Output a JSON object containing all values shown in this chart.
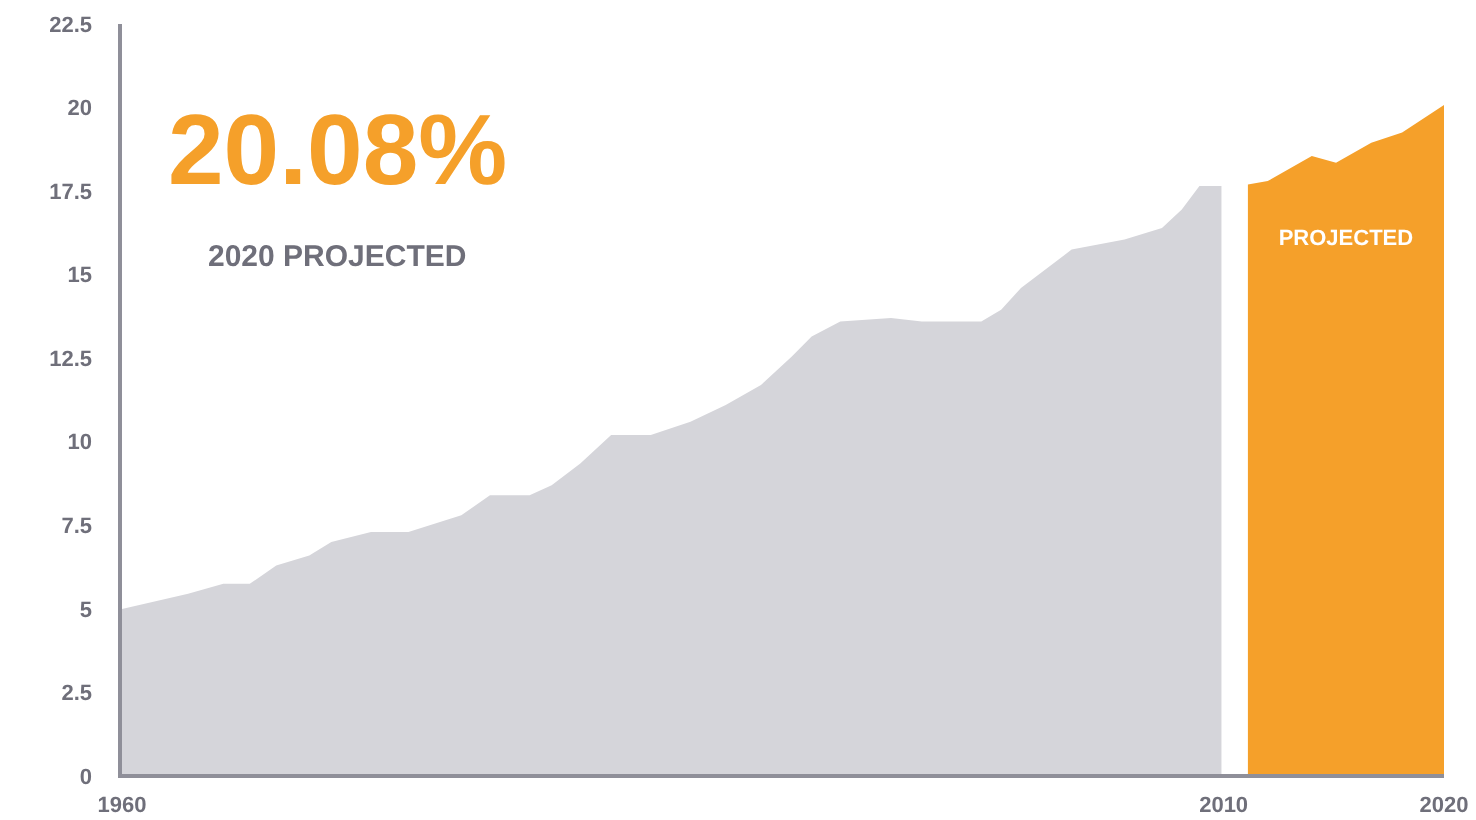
{
  "chart_data": {
    "type": "area",
    "annotations": [
      "20.08%",
      "2020 PROJECTED"
    ],
    "xlim": [
      1960,
      2020
    ],
    "xticks": [
      1960,
      2010,
      2020
    ],
    "ylim": [
      0,
      22.5
    ],
    "yticks": [
      0,
      2.5,
      5,
      7.5,
      10,
      12.5,
      15,
      17.5,
      20,
      22.5
    ],
    "grid": false,
    "legend": false,
    "series": [
      {
        "color": "#d5d5da",
        "x": [
          1960,
          1963,
          1964.6,
          1965.8,
          1967,
          1968.5,
          1969.5,
          1971.3,
          1973,
          1975.4,
          1976.7,
          1978.5,
          1979.5,
          1980.8,
          1982.2,
          1984,
          1985.8,
          1987.4,
          1989,
          1990.4,
          1991.3,
          1992.6,
          1994.9,
          1996.3,
          1999,
          1999.9,
          2000.8,
          2003.1,
          2005.5,
          2007.2,
          2008.1,
          2008.9,
          2009.9
        ],
        "values": [
          5.0,
          5.45,
          5.75,
          5.75,
          6.3,
          6.6,
          7.0,
          7.3,
          7.3,
          7.8,
          8.4,
          8.4,
          8.7,
          9.35,
          10.2,
          10.2,
          10.6,
          11.1,
          11.7,
          12.55,
          13.15,
          13.6,
          13.7,
          13.6,
          13.6,
          13.95,
          14.6,
          15.75,
          16.05,
          16.4,
          16.95,
          17.65,
          17.65
        ]
      },
      {
        "name": "PROJECTED",
        "color": "#f5a02a",
        "x": [
          2011.1,
          2012,
          2014,
          2015.1,
          2016.7,
          2018.1,
          2020
        ],
        "values": [
          17.7,
          17.8,
          18.55,
          18.35,
          18.95,
          19.25,
          20.08
        ]
      }
    ]
  }
}
